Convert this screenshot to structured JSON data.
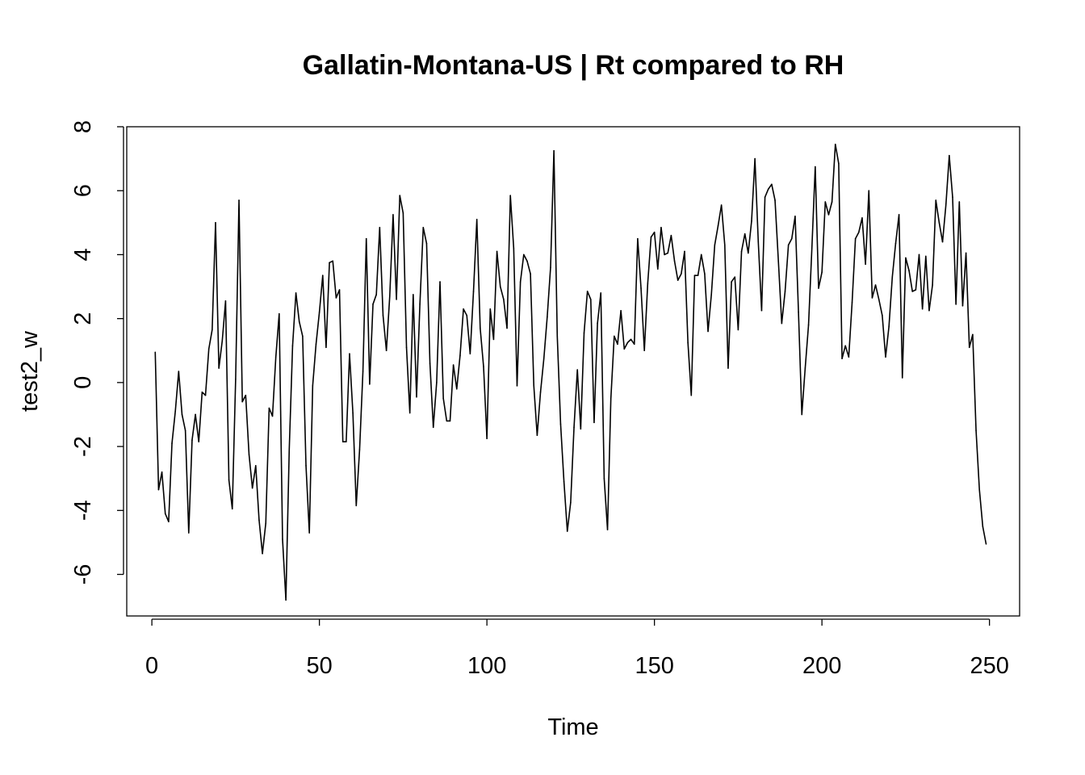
{
  "chart_data": {
    "type": "line",
    "title": "Gallatin-Montana-US | Rt compared to RH",
    "xlabel": "Time",
    "ylabel": "test2_w",
    "xlim": [
      -7.5,
      259
    ],
    "ylim": [
      -7.3,
      8
    ],
    "grid": false,
    "legend": "none",
    "line_color": "#000000",
    "x_ticks": [
      0,
      50,
      100,
      150,
      200,
      250
    ],
    "y_ticks": [
      -6,
      -4,
      -2,
      0,
      2,
      4,
      6,
      8
    ],
    "x_tick_labels": [
      "0",
      "50",
      "100",
      "150",
      "200",
      "250"
    ],
    "y_tick_labels": [
      "-6",
      "-4",
      "-2",
      "0",
      "2",
      "4",
      "6",
      "8"
    ],
    "series": [
      {
        "x_start": 1,
        "x_step": 1,
        "values": [
          0.95,
          -3.35,
          -2.8,
          -4.1,
          -4.35,
          -1.9,
          -0.9,
          0.35,
          -1.0,
          -1.5,
          -4.7,
          -1.8,
          -1.0,
          -1.85,
          -0.3,
          -0.4,
          1.05,
          1.65,
          5.0,
          0.45,
          1.3,
          2.55,
          -3.05,
          -3.95,
          0.1,
          5.7,
          -0.6,
          -0.4,
          -2.25,
          -3.3,
          -2.6,
          -4.3,
          -5.35,
          -4.4,
          -0.8,
          -1.05,
          0.8,
          2.15,
          -4.9,
          -6.8,
          -2.1,
          1.15,
          2.8,
          1.9,
          1.45,
          -2.6,
          -4.7,
          -0.1,
          1.2,
          2.2,
          3.35,
          1.1,
          3.75,
          3.8,
          2.65,
          2.9,
          -1.85,
          -1.85,
          0.9,
          -0.95,
          -3.85,
          -2.1,
          0.35,
          4.5,
          -0.05,
          2.45,
          2.75,
          4.85,
          2.1,
          1.0,
          2.7,
          5.25,
          2.6,
          5.85,
          5.3,
          1.1,
          -0.95,
          2.75,
          -0.45,
          2.45,
          4.85,
          4.35,
          0.6,
          -1.4,
          0.0,
          3.15,
          -0.5,
          -1.2,
          -1.2,
          0.55,
          -0.2,
          0.85,
          2.3,
          2.1,
          0.9,
          2.85,
          5.1,
          1.7,
          0.5,
          -1.75,
          2.3,
          1.35,
          4.1,
          3.0,
          2.6,
          1.7,
          5.85,
          4.2,
          -0.1,
          3.15,
          4.0,
          3.8,
          3.4,
          -0.1,
          -1.65,
          -0.3,
          0.75,
          2.05,
          3.6,
          7.25,
          1.45,
          -1.3,
          -3.1,
          -4.65,
          -3.75,
          -1.4,
          0.4,
          -1.45,
          1.55,
          2.85,
          2.6,
          -1.25,
          1.85,
          2.8,
          -3.0,
          -4.6,
          -0.5,
          1.45,
          1.2,
          2.25,
          1.05,
          1.25,
          1.35,
          1.2,
          4.5,
          2.95,
          1.0,
          3.1,
          4.55,
          4.7,
          3.55,
          4.85,
          4.0,
          4.05,
          4.6,
          3.8,
          3.2,
          3.4,
          4.1,
          1.25,
          -0.4,
          3.35,
          3.35,
          4.0,
          3.4,
          1.6,
          2.75,
          4.3,
          4.9,
          5.55,
          4.3,
          0.45,
          3.15,
          3.3,
          1.65,
          4.1,
          4.65,
          4.05,
          5.05,
          7.0,
          4.4,
          2.25,
          5.8,
          6.05,
          6.2,
          5.7,
          3.8,
          1.85,
          2.85,
          4.3,
          4.5,
          5.2,
          2.2,
          -1.0,
          0.45,
          1.8,
          4.2,
          6.75,
          2.95,
          3.45,
          5.65,
          5.25,
          5.65,
          7.45,
          6.85,
          0.75,
          1.15,
          0.8,
          2.5,
          4.5,
          4.7,
          5.15,
          3.7,
          6.0,
          2.65,
          3.05,
          2.6,
          2.1,
          0.8,
          1.75,
          3.3,
          4.35,
          5.25,
          0.15,
          3.9,
          3.5,
          2.85,
          2.9,
          4.0,
          2.3,
          3.95,
          2.25,
          3.05,
          5.7,
          5.0,
          4.4,
          5.55,
          7.1,
          5.8,
          2.45,
          5.65,
          2.4,
          4.05,
          1.1,
          1.5,
          -1.5,
          -3.35,
          -4.5,
          -5.05
        ]
      }
    ]
  }
}
